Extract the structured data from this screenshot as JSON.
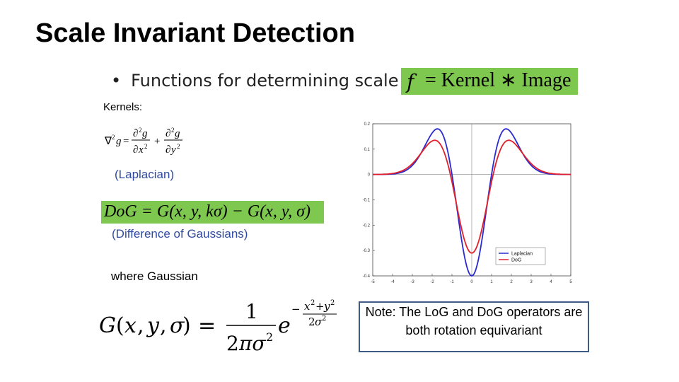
{
  "slide": {
    "title": "Scale Invariant Detection",
    "bullet": "Functions for determining scale",
    "bullet_formula_f": "f",
    "bullet_formula_rest": "= Kernel ∗ Image",
    "kernels_label": "Kernels:",
    "laplacian_label": "(Laplacian)",
    "dog_formula": "DoG = G(x, y, kσ) − G(x, y, σ)",
    "dog_label": "(Difference of Gaussians)",
    "where_label": "where Gaussian",
    "note": "Note: The LoG and DoG operators are both rotation equivariant",
    "colors": {
      "highlight": "#7ec850",
      "label_blue": "#2f4aa0",
      "note_border": "#3e5b86"
    }
  },
  "chart_data": {
    "type": "line",
    "xlim": [
      -5,
      5
    ],
    "ylim": [
      -0.4,
      0.2
    ],
    "xticks": [
      "-5",
      "-4",
      "-3",
      "-2",
      "-1",
      "0",
      "1",
      "2",
      "3",
      "4",
      "5"
    ],
    "yticks": [
      "0.2",
      "0.1",
      "0",
      "-0.1",
      "-0.2",
      "-0.3",
      "-0.4"
    ],
    "legend_placement": "bottom-right",
    "series": [
      {
        "name": "Laplacian",
        "color": "#2a2ad0",
        "sigma": 1.0,
        "min": -0.4,
        "max": 0.18
      },
      {
        "name": "DoG",
        "color": "#e0202a",
        "sigma": 1.0,
        "min": -0.31,
        "max": 0.135
      }
    ]
  }
}
